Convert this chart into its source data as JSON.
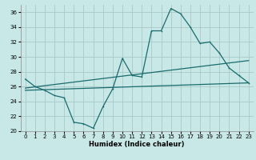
{
  "xlabel": "Humidex (Indice chaleur)",
  "bg_color": "#c8e8e8",
  "grid_color": "#a8c8c8",
  "line_color": "#1a6b6b",
  "xlim": [
    -0.5,
    23.5
  ],
  "ylim": [
    20,
    37
  ],
  "yticks": [
    20,
    22,
    24,
    26,
    28,
    30,
    32,
    34,
    36
  ],
  "xticks": [
    0,
    1,
    2,
    3,
    4,
    5,
    6,
    7,
    8,
    9,
    10,
    11,
    12,
    13,
    14,
    15,
    16,
    17,
    18,
    19,
    20,
    21,
    22,
    23
  ],
  "series": {
    "jagged_x": [
      0,
      1,
      2,
      3,
      4,
      5,
      6,
      7,
      8,
      9,
      10,
      11,
      12,
      13,
      14,
      15,
      16,
      17,
      18,
      19,
      20,
      21,
      22,
      23
    ],
    "jagged_y": [
      27.0,
      26.0,
      25.5,
      24.8,
      24.5,
      21.2,
      21.0,
      20.4,
      23.3,
      25.7,
      29.8,
      27.5,
      27.3,
      33.5,
      33.5,
      36.5,
      35.8,
      34.0,
      31.8,
      32.0,
      30.5,
      28.5,
      27.5,
      26.5
    ],
    "upper_line_x": [
      0,
      23
    ],
    "upper_line_y": [
      25.8,
      29.5
    ],
    "lower_line_x": [
      0,
      23
    ],
    "lower_line_y": [
      25.5,
      26.5
    ]
  }
}
